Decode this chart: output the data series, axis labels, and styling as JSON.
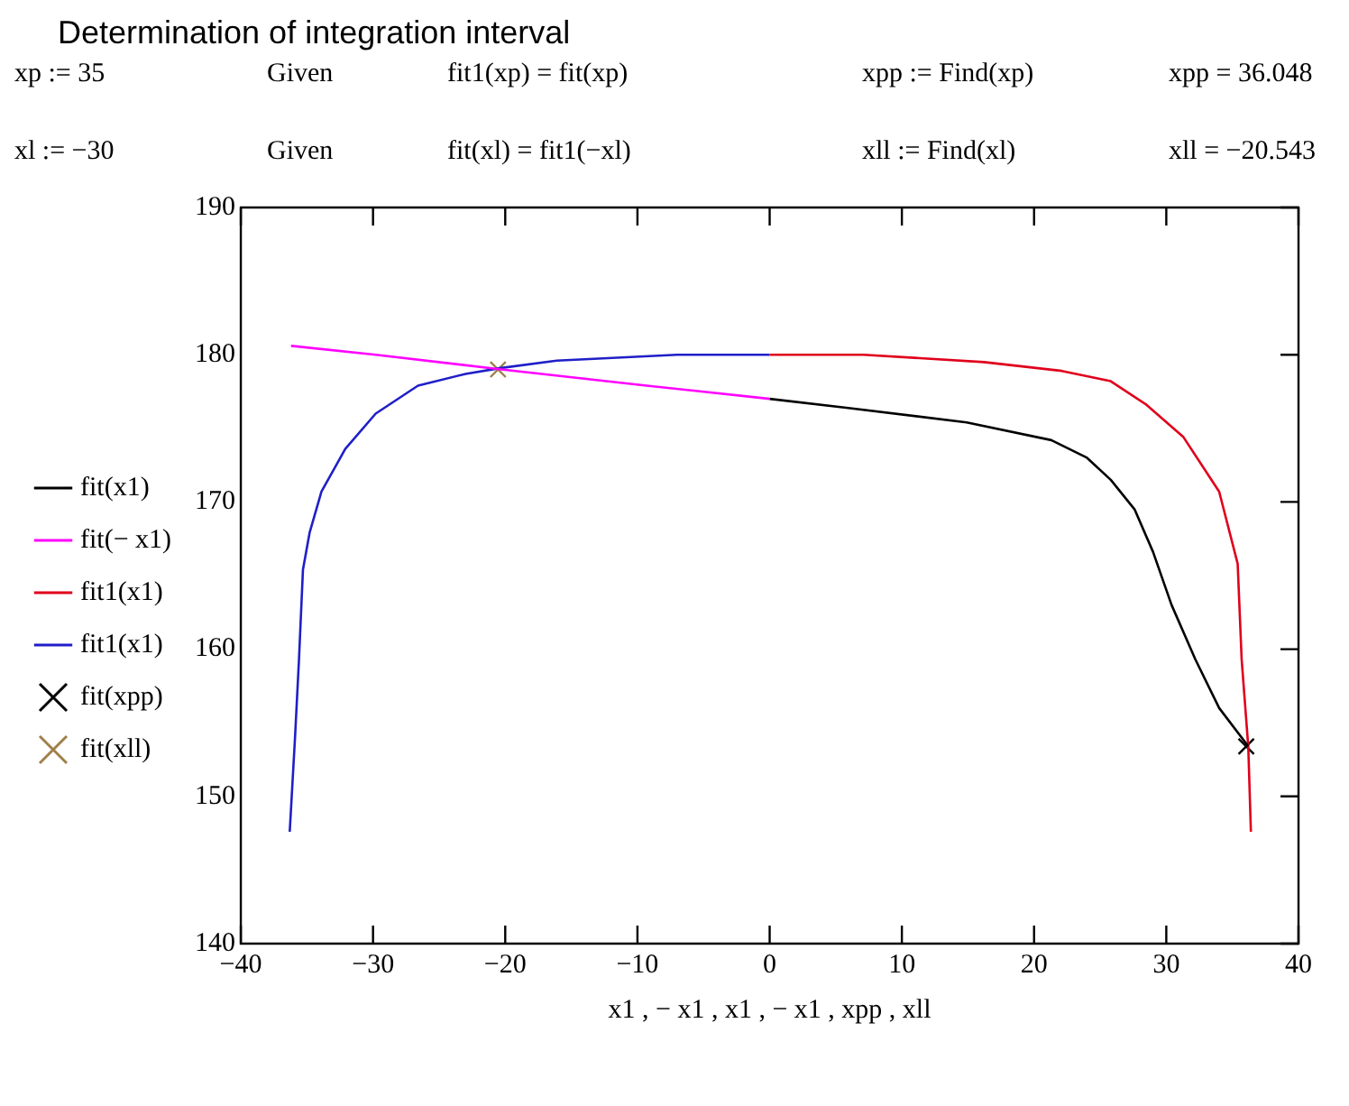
{
  "chart_data": {
    "type": "line",
    "title": "Determination of integration interval",
    "annotations": [
      "xp := 35",
      "Given",
      "fit1(xp) = fit(xp)",
      "xpp := Find(xp)",
      "xpp = 36.048",
      "xl := −30",
      "Given",
      "fit(xl) = fit1(−xl)",
      "xll := Find(xl)",
      "xll = −20.543"
    ],
    "xlabel": "x1 , − x1 , x1 , − x1 , xpp , xll",
    "xlim": [
      -40,
      40
    ],
    "xticks": [
      -40,
      -30,
      -20,
      -10,
      0,
      10,
      20,
      30,
      40
    ],
    "ylim": [
      140,
      190
    ],
    "yticks": [
      140,
      150,
      160,
      170,
      180,
      190
    ],
    "grid": false,
    "legend": "left",
    "marker": "none",
    "line_style": "solid",
    "series": [
      {
        "name": "fit(x1)",
        "color": "#000000",
        "x": [
          0,
          5.8,
          14.9,
          21.3,
          24.0,
          25.8,
          27.6,
          29.0,
          30.4,
          32.2,
          34.0,
          36.2
        ],
        "values": [
          177.0,
          176.4,
          175.4,
          174.2,
          173.0,
          171.5,
          169.5,
          166.6,
          163.0,
          159.3,
          156.0,
          153.4
        ]
      },
      {
        "name": "fit(− x1)",
        "color": "#ff00ff",
        "x": [
          -36.2,
          -29.8,
          -20.3,
          -9.3,
          0
        ],
        "values": [
          180.6,
          180.0,
          179.0,
          177.9,
          177.0
        ]
      },
      {
        "name": "fit1(x1)",
        "color": "#e0001b",
        "x": [
          0,
          7.1,
          16.2,
          22.1,
          25.8,
          28.5,
          31.3,
          34.0,
          35.4,
          35.7,
          36.2,
          36.4
        ],
        "values": [
          180.0,
          180.0,
          179.5,
          178.9,
          178.2,
          176.6,
          174.4,
          170.7,
          165.8,
          159.3,
          153.4,
          147.6
        ]
      },
      {
        "name": "fit1(x1)",
        "color": "#1f1fc8",
        "x": [
          -36.3,
          -35.9,
          -35.6,
          -35.3,
          -34.8,
          -33.9,
          -32.1,
          -29.8,
          -26.6,
          -23.0,
          -20.3,
          -16.1,
          -7.0,
          0
        ],
        "values": [
          147.6,
          154.0,
          159.3,
          165.4,
          167.9,
          170.7,
          173.6,
          176.0,
          177.9,
          178.7,
          179.1,
          179.6,
          180.0,
          180.0
        ]
      },
      {
        "name": "fit(xpp)",
        "type": "scatter",
        "marker": "cross",
        "color": "#000000",
        "x": [
          36.048
        ],
        "values": [
          153.4
        ]
      },
      {
        "name": "fit(xll)",
        "type": "scatter",
        "marker": "cross",
        "color": "#a0804a",
        "x": [
          -20.543
        ],
        "values": [
          179.0
        ]
      }
    ]
  }
}
